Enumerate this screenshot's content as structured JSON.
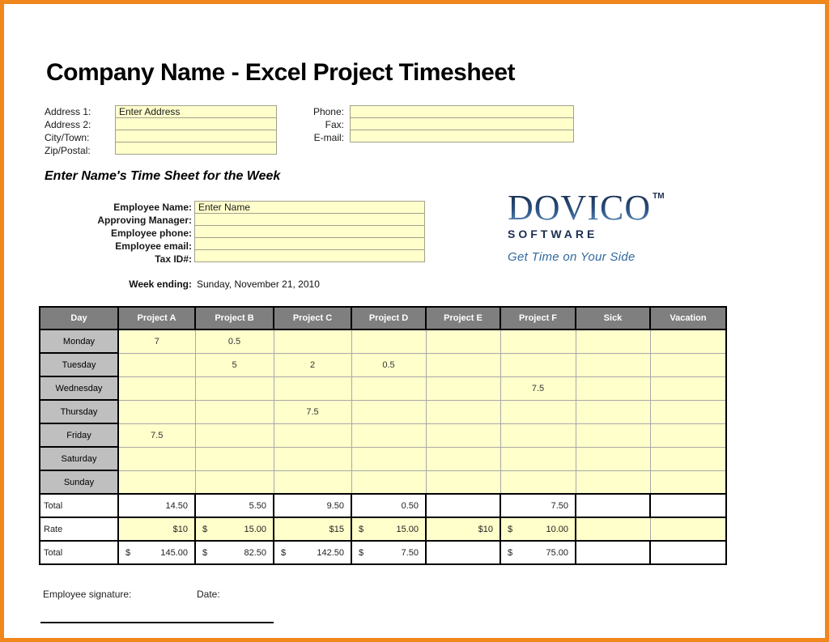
{
  "page": {
    "title": "Company Name - Excel Project Timesheet",
    "section_heading": "Enter Name's Time Sheet for the Week"
  },
  "address": {
    "fields": [
      {
        "label": "Address 1:",
        "value": "Enter Address"
      },
      {
        "label": "Address 2:",
        "value": ""
      },
      {
        "label": "City/Town:",
        "value": ""
      },
      {
        "label": "Zip/Postal:",
        "value": ""
      }
    ]
  },
  "contact": {
    "fields": [
      {
        "label": "Phone:",
        "value": ""
      },
      {
        "label": "Fax:",
        "value": ""
      },
      {
        "label": "E-mail:",
        "value": ""
      }
    ]
  },
  "employee": {
    "fields": [
      {
        "label": "Employee Name:",
        "value": "Enter Name"
      },
      {
        "label": "Approving Manager:",
        "value": ""
      },
      {
        "label": "Employee phone:",
        "value": ""
      },
      {
        "label": "Employee email:",
        "value": ""
      },
      {
        "label": "Tax ID#:",
        "value": ""
      }
    ],
    "week_ending_label": "Week ending:",
    "week_ending_value": "Sunday, November 21, 2010"
  },
  "logo": {
    "name": "DOVICO",
    "tm": "TM",
    "subtitle": "SOFTWARE",
    "tagline": "Get Time on Your Side",
    "navy": "#1C2F52",
    "blue": "#31699F"
  },
  "timesheet": {
    "columns": [
      "Day",
      "Project A",
      "Project B",
      "Project C",
      "Project D",
      "Project E",
      "Project F",
      "Sick",
      "Vacation"
    ],
    "days": [
      {
        "day": "Monday",
        "values": [
          "7",
          "0.5",
          "",
          "",
          "",
          "",
          "",
          ""
        ]
      },
      {
        "day": "Tuesday",
        "values": [
          "",
          "5",
          "2",
          "0.5",
          "",
          "",
          "",
          ""
        ]
      },
      {
        "day": "Wednesday",
        "values": [
          "",
          "",
          "",
          "",
          "",
          "7.5",
          "",
          ""
        ]
      },
      {
        "day": "Thursday",
        "values": [
          "",
          "",
          "7.5",
          "",
          "",
          "",
          "",
          ""
        ]
      },
      {
        "day": "Friday",
        "values": [
          "7.5",
          "",
          "",
          "",
          "",
          "",
          "",
          ""
        ]
      },
      {
        "day": "Saturday",
        "values": [
          "",
          "",
          "",
          "",
          "",
          "",
          "",
          ""
        ]
      },
      {
        "day": "Sunday",
        "values": [
          "",
          "",
          "",
          "",
          "",
          "",
          "",
          ""
        ]
      }
    ],
    "total_hours": {
      "label": "Total",
      "values": [
        "14.50",
        "5.50",
        "9.50",
        "0.50",
        "",
        "7.50",
        "",
        ""
      ]
    },
    "rate": {
      "label": "Rate",
      "values": [
        {
          "cur": "",
          "amt": "$10"
        },
        {
          "cur": "$",
          "amt": "15.00"
        },
        {
          "cur": "",
          "amt": "$15"
        },
        {
          "cur": "$",
          "amt": "15.00"
        },
        {
          "cur": "",
          "amt": "$10"
        },
        {
          "cur": "$",
          "amt": "10.00"
        },
        {
          "cur": "",
          "amt": ""
        },
        {
          "cur": "",
          "amt": ""
        }
      ]
    },
    "total_pay": {
      "label": "Total",
      "values": [
        {
          "cur": "$",
          "amt": "145.00"
        },
        {
          "cur": "$",
          "amt": "82.50"
        },
        {
          "cur": "$",
          "amt": "142.50"
        },
        {
          "cur": "$",
          "amt": "7.50"
        },
        {
          "cur": "",
          "amt": ""
        },
        {
          "cur": "$",
          "amt": "75.00"
        },
        {
          "cur": "",
          "amt": ""
        },
        {
          "cur": "",
          "amt": ""
        }
      ]
    }
  },
  "footer": {
    "signature_label": "Employee signature:",
    "date_label": "Date:"
  },
  "colors": {
    "border_orange": "#F0861C",
    "header_gray": "#7F7F7F",
    "day_gray": "#BFBFBF",
    "cell_yellow": "#FFFFCC"
  }
}
